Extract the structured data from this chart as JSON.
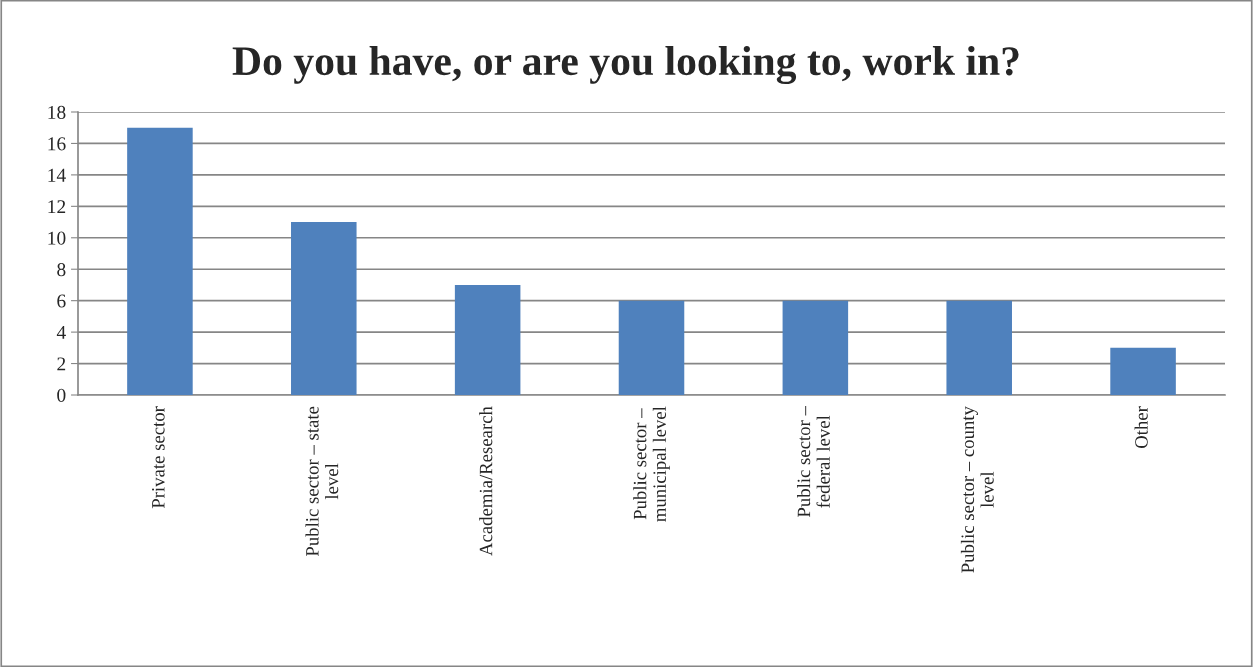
{
  "chart_data": {
    "type": "bar",
    "title": "Do you have, or are you looking to, work in?",
    "categories": [
      "Private sector",
      "Public sector – state level",
      "Academia/Research",
      "Public sector – municipal level",
      "Public sector – federal level",
      "Public sector – county level",
      "Other"
    ],
    "values": [
      17,
      11,
      7,
      6,
      6,
      6,
      3
    ],
    "color": "#4f81bd",
    "ylim": [
      0,
      18
    ],
    "yticks": [
      0,
      2,
      4,
      6,
      8,
      10,
      12,
      14,
      16,
      18
    ],
    "grid": "y",
    "legend": false
  }
}
